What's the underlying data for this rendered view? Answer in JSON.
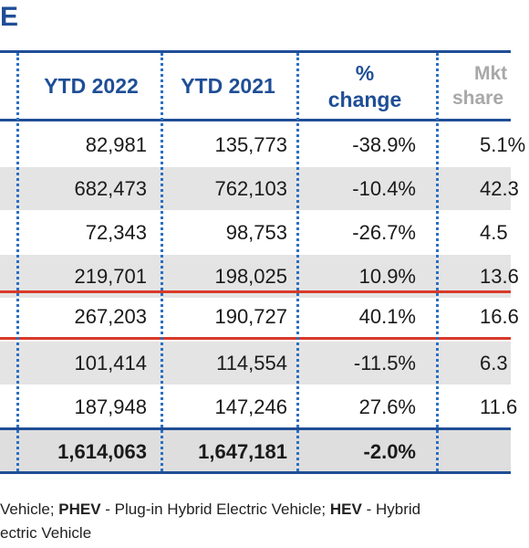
{
  "title": "E",
  "headers": {
    "ytd2022": "YTD 2022",
    "ytd2021": "YTD 2021",
    "pct_line1": "%",
    "pct_line2": "change",
    "mkt_line1": "Mkt",
    "mkt_line2": "share"
  },
  "rows": [
    {
      "ytd2022": "82,981",
      "ytd2021": "135,773",
      "pct": "-38.9%",
      "mkt": "5.1%"
    },
    {
      "ytd2022": "682,473",
      "ytd2021": "762,103",
      "pct": "-10.4%",
      "mkt": "42.3"
    },
    {
      "ytd2022": "72,343",
      "ytd2021": "98,753",
      "pct": "-26.7%",
      "mkt": "4.5"
    },
    {
      "ytd2022": "219,701",
      "ytd2021": "198,025",
      "pct": "10.9%",
      "mkt": "13.6"
    },
    {
      "ytd2022": "267,203",
      "ytd2021": "190,727",
      "pct": "40.1%",
      "mkt": "16.6"
    },
    {
      "ytd2022": "101,414",
      "ytd2021": "114,554",
      "pct": "-11.5%",
      "mkt": "6.3"
    },
    {
      "ytd2022": "187,948",
      "ytd2021": "147,246",
      "pct": "27.6%",
      "mkt": "11.6"
    }
  ],
  "total": {
    "ytd2022": "1,614,063",
    "ytd2021": "1,647,181",
    "pct": "-2.0%",
    "mkt": ""
  },
  "footnote": {
    "line1_a": " Vehicle; ",
    "line1_b": "PHEV",
    "line1_c": " - Plug-in Hybrid Electric Vehicle; ",
    "line1_d": "HEV",
    "line1_e": " - Hybrid",
    "line2": "ectric Vehicle"
  }
}
